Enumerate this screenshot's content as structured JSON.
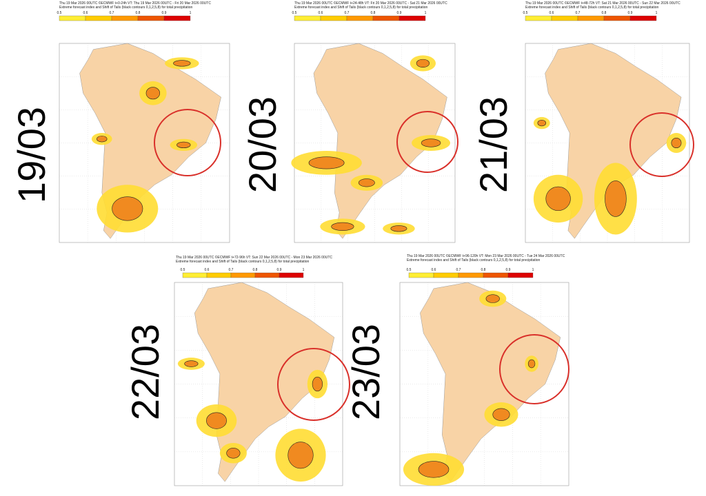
{
  "colorbar": {
    "ticks": [
      0.5,
      0.6,
      0.7,
      0.8,
      0.9,
      1
    ],
    "colors": [
      "#ffee33",
      "#ffcc00",
      "#ff9900",
      "#ee5500",
      "#dd0000"
    ]
  },
  "panels": [
    {
      "header_line1": "Thu 19 Mar 2026 00UTC ©ECMWF t+0-24h VT: Thu 19 Mar 2026 00UTC - Fri 20 Mar 2026 00UTC",
      "header_line2": "Extreme forecast index and Shift of Tails (black contours 0,1,2,5,8) for total precipitation",
      "date": "19/03"
    },
    {
      "header_line1": "Thu 19 Mar 2026 00UTC ©ECMWF t+24-48h VT: Fri 20 Mar 2026 00UTC - Sat 21 Mar 2026 00UTC",
      "header_line2": "Extreme forecast index and Shift of Tails (black contours 0,1,2,5,8) for total precipitation",
      "date": "20/03"
    },
    {
      "header_line1": "Thu 19 Mar 2026 00UTC ©ECMWF t+48-72h VT: Sat 21 Mar 2026 00UTC - Sun 22 Mar 2026 00UTC",
      "header_line2": "Extreme forecast index and Shift of Tails (black contours 0,1,2,5,8) for total precipitation",
      "date": "21/03"
    },
    {
      "header_line1": "Thu 19 Mar 2026 00UTC ©ECMWF t+72-96h VT: Sun 22 Mar 2026 00UTC - Mon 23 Mar 2026 00UTC",
      "header_line2": "Extreme forecast index and Shift of Tails (black contours 0,1,2,5,8) for total precipitation",
      "date": "22/03"
    },
    {
      "header_line1": "Thu 19 Mar 2026 00UTC ©ECMWF t+96-120h VT: Mon 23 Mar 2026 00UTC - Tue 24 Mar 2026 00UTC",
      "header_line2": "Extreme forecast index and Shift of Tails (black contours 0,1,2,5,8) for total precipitation",
      "date": "23/03"
    }
  ]
}
